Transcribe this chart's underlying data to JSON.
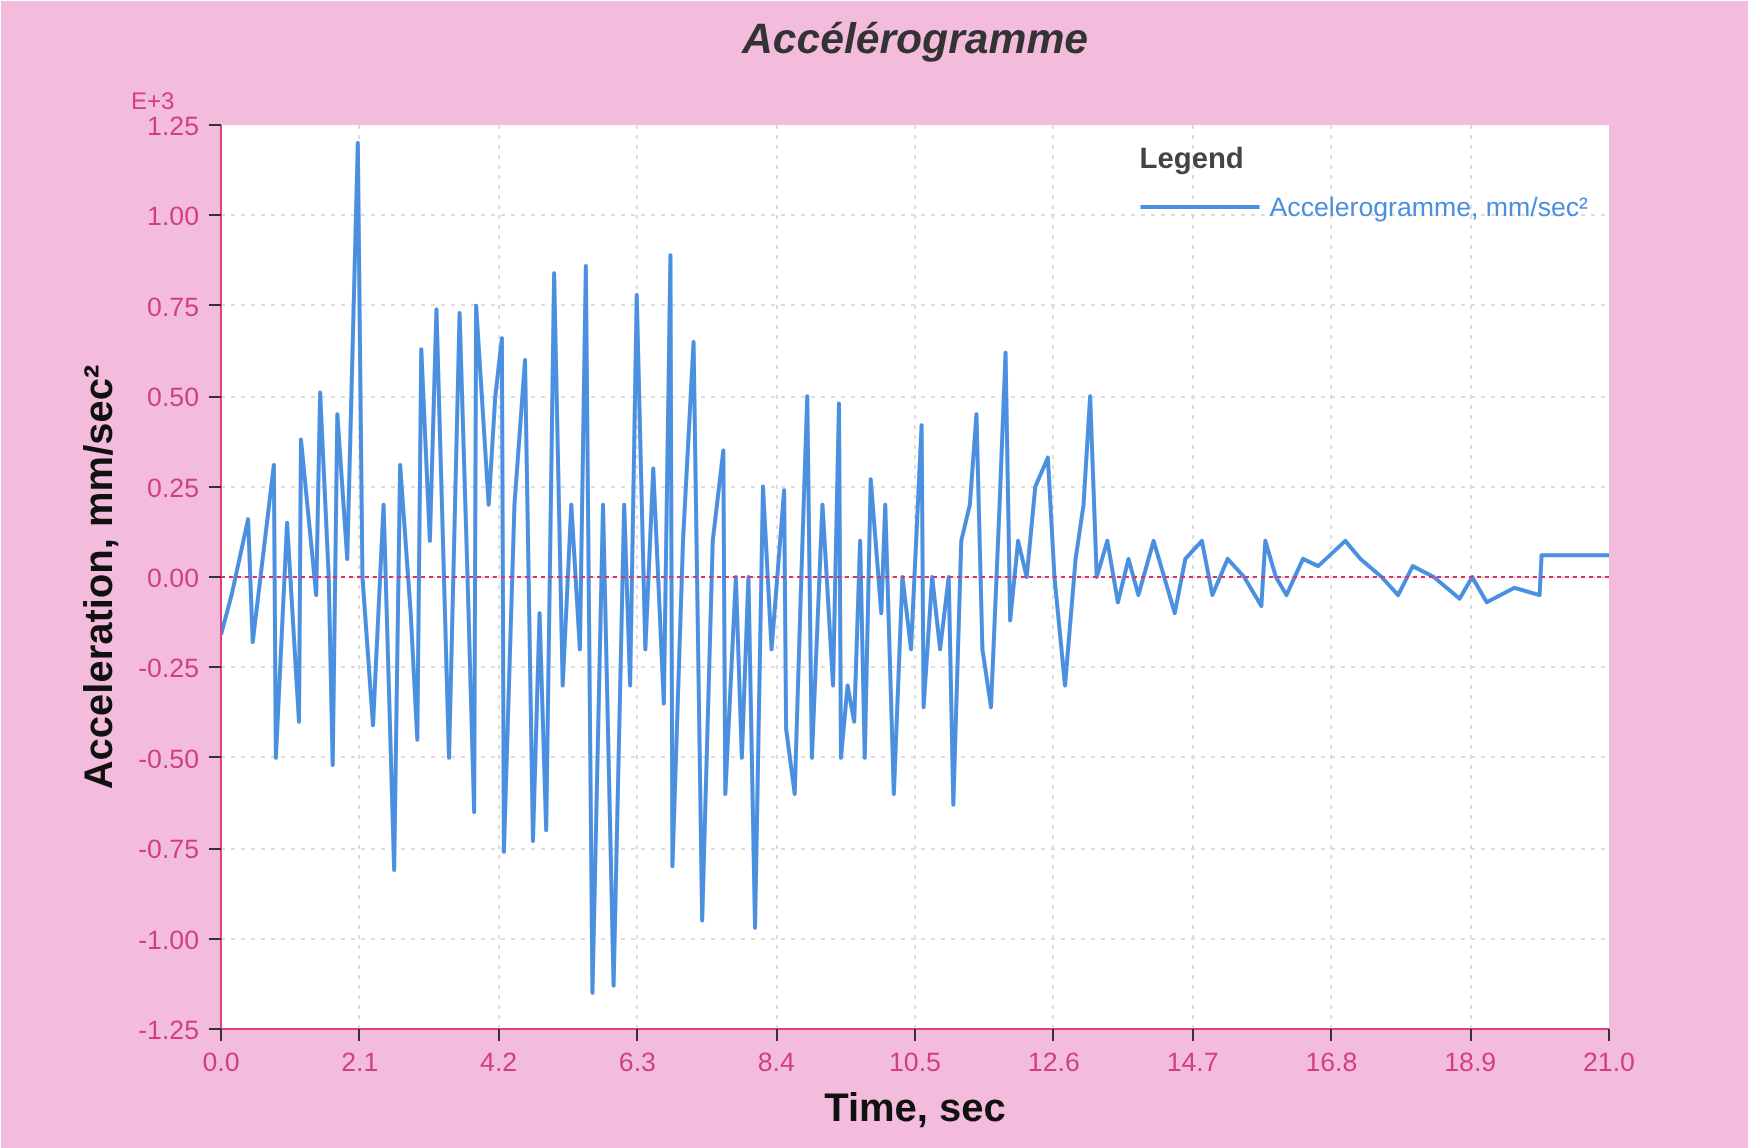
{
  "chart_data": {
    "type": "line",
    "title": "Accélérogramme",
    "xlabel": "Time, sec",
    "ylabel": "Acceleration, mm/sec²",
    "annotations": [
      "E+3"
    ],
    "xlim": [
      0.0,
      21.0
    ],
    "xticks": [
      {
        "value": 0,
        "label": "0.0"
      },
      2.1,
      4.2,
      6.3,
      8.4,
      10.5,
      12.6,
      14.7,
      16.8,
      18.9,
      {
        "value": 21,
        "label": "21.0"
      }
    ],
    "ylim": [
      -1.25,
      1.25
    ],
    "yticks": [
      -1.25,
      {
        "value": -1,
        "label": "-1.00"
      },
      -0.75,
      {
        "value": -0.5,
        "label": "-0.50"
      },
      -0.25,
      {
        "value": 0,
        "label": "0.00"
      },
      0.25,
      {
        "value": 0.5,
        "label": "0.50"
      },
      0.75,
      {
        "value": 1,
        "label": "1.00"
      },
      1.25
    ],
    "grid": true,
    "legend": "top right",
    "legend_title": "Legend",
    "marker": "none",
    "line_style": "solid",
    "ref_lines": [
      {
        "axis": "y",
        "value": 0,
        "label": null,
        "color": "#e0306a",
        "line_style": "dotted"
      }
    ],
    "series": [
      {
        "name": "Accelerogramme, mm/sec²",
        "color": "#4a8fe0",
        "x": [
          0.0,
          0.16,
          0.41,
          0.48,
          0.8,
          0.83,
          1.0,
          1.18,
          1.21,
          1.44,
          1.5,
          1.63,
          1.69,
          1.76,
          1.91,
          2.07,
          2.14,
          2.3,
          2.46,
          2.62,
          2.71,
          2.87,
          2.97,
          3.03,
          3.16,
          3.26,
          3.45,
          3.61,
          3.73,
          3.83,
          3.86,
          4.05,
          4.15,
          4.25,
          4.28,
          4.44,
          4.6,
          4.72,
          4.82,
          4.92,
          5.04,
          5.17,
          5.3,
          5.43,
          5.52,
          5.62,
          5.78,
          5.94,
          6.1,
          6.19,
          6.29,
          6.42,
          6.54,
          6.7,
          6.8,
          6.83,
          6.99,
          7.15,
          7.28,
          7.44,
          7.6,
          7.63,
          7.79,
          7.88,
          7.98,
          8.08,
          8.2,
          8.33,
          8.52,
          8.55,
          8.68,
          8.78,
          8.87,
          8.94,
          9.1,
          9.26,
          9.35,
          9.38,
          9.48,
          9.58,
          9.67,
          9.74,
          9.83,
          9.99,
          10.05,
          10.18,
          10.31,
          10.44,
          10.6,
          10.63,
          10.76,
          10.88,
          11.01,
          11.08,
          11.2,
          11.33,
          11.43,
          11.52,
          11.65,
          11.78,
          11.87,
          11.94,
          12.06,
          12.19,
          12.32,
          12.51,
          12.61,
          12.77,
          12.93,
          13.05,
          13.15,
          13.25,
          13.41,
          13.57,
          13.73,
          13.88,
          14.11,
          14.27,
          14.43,
          14.59,
          14.84,
          15.0,
          15.23,
          15.48,
          15.74,
          15.8,
          15.96,
          16.12,
          16.37,
          16.6,
          17.01,
          17.24,
          17.56,
          17.81,
          18.03,
          18.35,
          18.74,
          18.93,
          19.15,
          19.57,
          19.95,
          19.98,
          21.0
        ],
        "values": [
          -0.16,
          -0.05,
          0.16,
          -0.18,
          0.31,
          -0.5,
          0.15,
          -0.4,
          0.38,
          -0.05,
          0.51,
          0.0,
          -0.52,
          0.45,
          0.05,
          1.2,
          0.0,
          -0.41,
          0.2,
          -0.81,
          0.31,
          -0.1,
          -0.45,
          0.63,
          0.1,
          0.74,
          -0.5,
          0.73,
          0.0,
          -0.65,
          0.75,
          0.2,
          0.5,
          0.66,
          -0.76,
          0.2,
          0.6,
          -0.73,
          -0.1,
          -0.7,
          0.84,
          -0.3,
          0.2,
          -0.2,
          0.86,
          -1.15,
          0.2,
          -1.13,
          0.2,
          -0.3,
          0.78,
          -0.2,
          0.3,
          -0.35,
          0.89,
          -0.8,
          0.1,
          0.65,
          -0.95,
          0.1,
          0.35,
          -0.6,
          0.0,
          -0.5,
          0.0,
          -0.97,
          0.25,
          -0.2,
          0.24,
          -0.42,
          -0.6,
          0.0,
          0.5,
          -0.5,
          0.2,
          -0.3,
          0.48,
          -0.5,
          -0.3,
          -0.4,
          0.1,
          -0.5,
          0.27,
          -0.1,
          0.2,
          -0.6,
          0.0,
          -0.2,
          0.42,
          -0.36,
          0.0,
          -0.2,
          0.0,
          -0.63,
          0.1,
          0.2,
          0.45,
          -0.2,
          -0.36,
          0.2,
          0.62,
          -0.12,
          0.1,
          0.0,
          0.25,
          0.33,
          0.0,
          -0.3,
          0.05,
          0.2,
          0.5,
          0.0,
          0.1,
          -0.07,
          0.05,
          -0.05,
          0.1,
          0.0,
          -0.1,
          0.05,
          0.1,
          -0.05,
          0.05,
          0.0,
          -0.08,
          0.1,
          0.0,
          -0.05,
          0.05,
          0.03,
          0.1,
          0.05,
          0.0,
          -0.05,
          0.03,
          0.0,
          -0.06,
          0.0,
          -0.07,
          -0.03,
          -0.05,
          0.06,
          0.06
        ]
      }
    ]
  }
}
